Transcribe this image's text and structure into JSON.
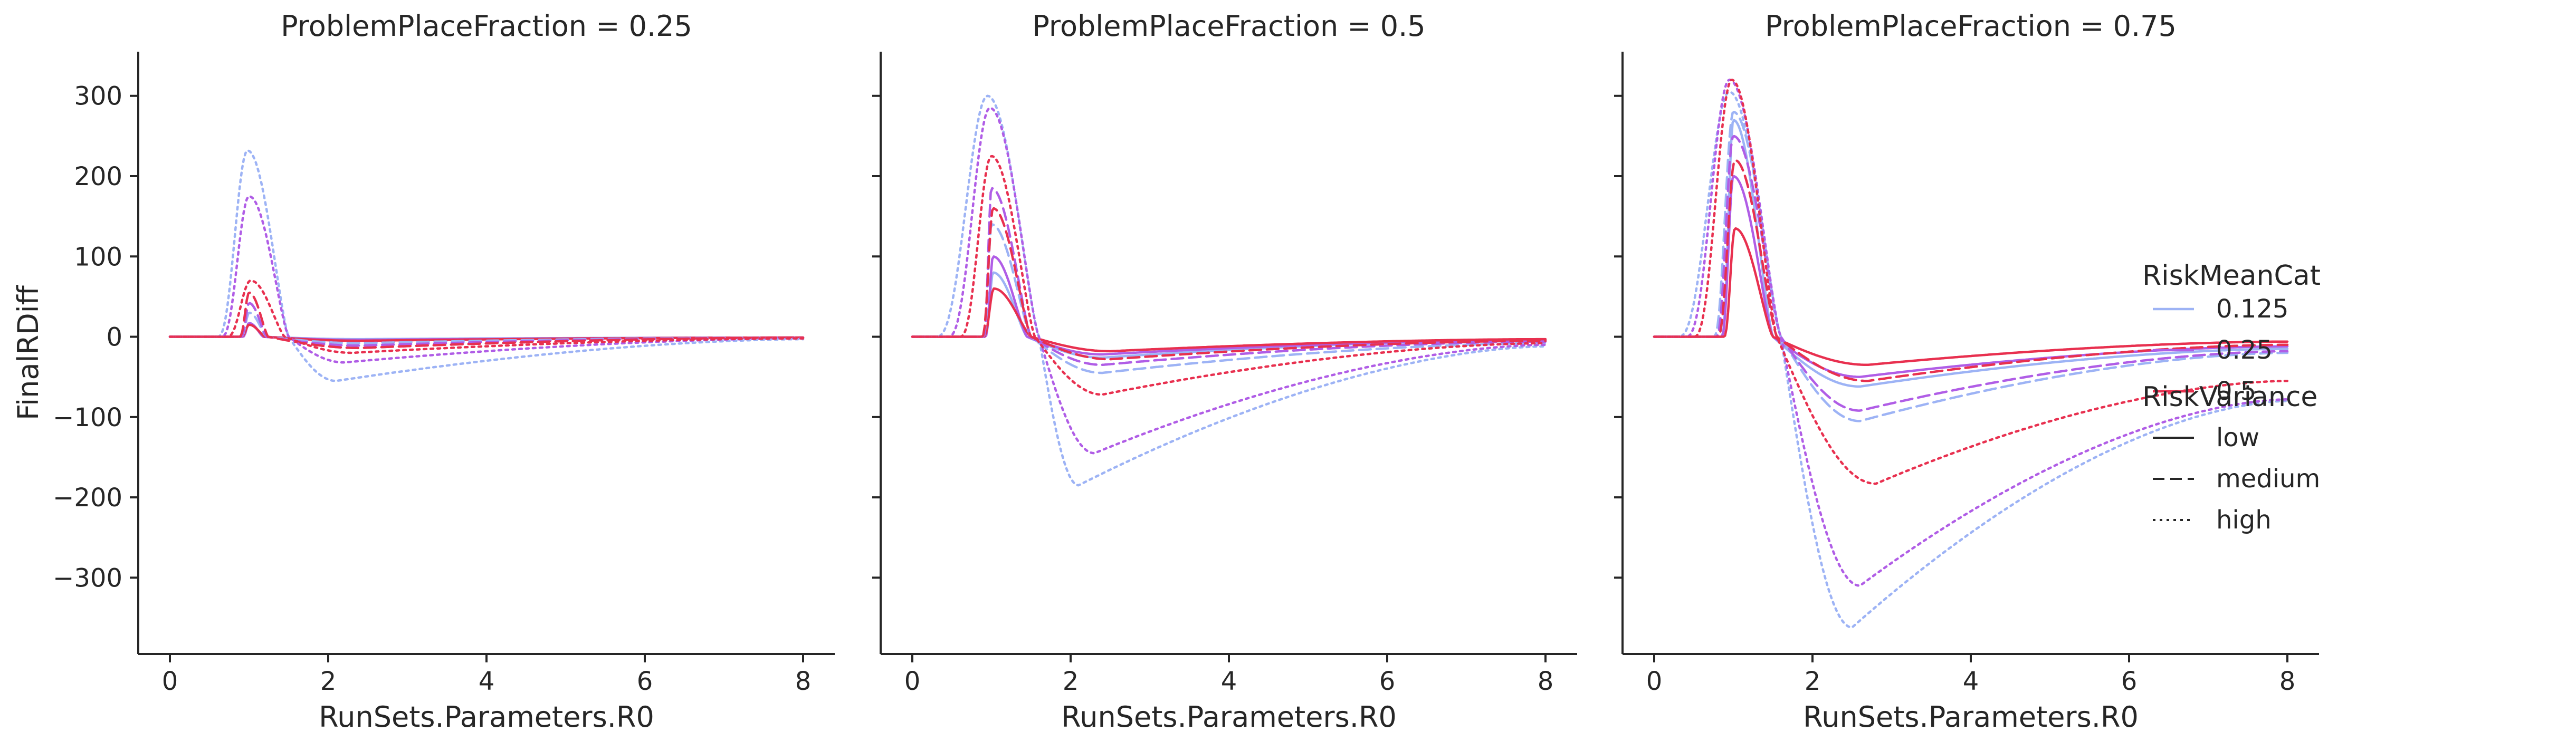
{
  "chart_data": {
    "type": "line",
    "facet_variable": "ProblemPlaceFraction",
    "xlabel": "RunSets.Parameters.R0",
    "ylabel": "FinalRDiff",
    "xlim": [
      -0.4,
      8.4
    ],
    "ylim": [
      -395,
      355
    ],
    "xticks": [
      0,
      2,
      4,
      6,
      8
    ],
    "yticks": [
      -300,
      -200,
      -100,
      0,
      100,
      200,
      300
    ],
    "x_tick_labels": [
      "0",
      "2",
      "4",
      "6",
      "8"
    ],
    "y_tick_labels": [
      "−300",
      "−200",
      "−100",
      "0",
      "100",
      "200",
      "300"
    ],
    "hue_title": "RiskMeanCat",
    "style_title": "RiskVariance",
    "hue_levels": [
      {
        "label": "0.125",
        "color": "#9db3f5"
      },
      {
        "label": "0.25",
        "color": "#b05de6"
      },
      {
        "label": "0.5",
        "color": "#e8304f"
      }
    ],
    "style_levels": [
      {
        "label": "low",
        "dash": "solid"
      },
      {
        "label": "medium",
        "dash": "dashed"
      },
      {
        "label": "high",
        "dash": "dotted"
      }
    ],
    "panels": [
      {
        "title": "ProblemPlaceFraction = 0.25",
        "series": [
          {
            "risk_mean": "0.125",
            "risk_variance": "low",
            "onset": 0.92,
            "peak_x": 1.0,
            "peak_y": 17,
            "tail_start": 1.18,
            "min_x": 2.4,
            "min_y": -3,
            "end_y": -1
          },
          {
            "risk_mean": "0.25",
            "risk_variance": "low",
            "onset": 0.92,
            "peak_x": 1.0,
            "peak_y": 17,
            "tail_start": 1.18,
            "min_x": 2.4,
            "min_y": -4,
            "end_y": -1
          },
          {
            "risk_mean": "0.5",
            "risk_variance": "low",
            "onset": 0.9,
            "peak_x": 1.0,
            "peak_y": 15,
            "tail_start": 1.2,
            "min_x": 2.4,
            "min_y": -5,
            "end_y": -1
          },
          {
            "risk_mean": "0.125",
            "risk_variance": "medium",
            "onset": 0.9,
            "peak_x": 1.0,
            "peak_y": 30,
            "tail_start": 1.22,
            "min_x": 2.4,
            "min_y": -8,
            "end_y": -1
          },
          {
            "risk_mean": "0.25",
            "risk_variance": "medium",
            "onset": 0.9,
            "peak_x": 1.0,
            "peak_y": 42,
            "tail_start": 1.22,
            "min_x": 2.4,
            "min_y": -11,
            "end_y": -1
          },
          {
            "risk_mean": "0.5",
            "risk_variance": "medium",
            "onset": 0.88,
            "peak_x": 1.0,
            "peak_y": 55,
            "tail_start": 1.24,
            "min_x": 2.4,
            "min_y": -14,
            "end_y": -1
          },
          {
            "risk_mean": "0.125",
            "risk_variance": "high",
            "onset": 0.6,
            "peak_x": 0.98,
            "peak_y": 232,
            "tail_start": 1.5,
            "min_x": 2.1,
            "min_y": -55,
            "end_y": -3
          },
          {
            "risk_mean": "0.25",
            "risk_variance": "high",
            "onset": 0.65,
            "peak_x": 1.0,
            "peak_y": 175,
            "tail_start": 1.5,
            "min_x": 2.2,
            "min_y": -32,
            "end_y": -2
          },
          {
            "risk_mean": "0.5",
            "risk_variance": "high",
            "onset": 0.72,
            "peak_x": 1.02,
            "peak_y": 70,
            "tail_start": 1.45,
            "min_x": 2.3,
            "min_y": -20,
            "end_y": -2
          }
        ]
      },
      {
        "title": "ProblemPlaceFraction = 0.5",
        "series": [
          {
            "risk_mean": "0.125",
            "risk_variance": "low",
            "onset": 0.92,
            "peak_x": 1.02,
            "peak_y": 80,
            "tail_start": 1.45,
            "min_x": 2.4,
            "min_y": -26,
            "end_y": -4
          },
          {
            "risk_mean": "0.25",
            "risk_variance": "low",
            "onset": 0.92,
            "peak_x": 1.02,
            "peak_y": 100,
            "tail_start": 1.45,
            "min_x": 2.4,
            "min_y": -22,
            "end_y": -4
          },
          {
            "risk_mean": "0.5",
            "risk_variance": "low",
            "onset": 0.9,
            "peak_x": 1.03,
            "peak_y": 60,
            "tail_start": 1.5,
            "min_x": 2.5,
            "min_y": -18,
            "end_y": -3
          },
          {
            "risk_mean": "0.125",
            "risk_variance": "medium",
            "onset": 0.9,
            "peak_x": 1.0,
            "peak_y": 140,
            "tail_start": 1.5,
            "min_x": 2.4,
            "min_y": -45,
            "end_y": -8
          },
          {
            "risk_mean": "0.25",
            "risk_variance": "medium",
            "onset": 0.9,
            "peak_x": 1.0,
            "peak_y": 185,
            "tail_start": 1.5,
            "min_x": 2.4,
            "min_y": -35,
            "end_y": -6
          },
          {
            "risk_mean": "0.5",
            "risk_variance": "medium",
            "onset": 0.88,
            "peak_x": 1.02,
            "peak_y": 160,
            "tail_start": 1.5,
            "min_x": 2.5,
            "min_y": -28,
            "end_y": -5
          },
          {
            "risk_mean": "0.125",
            "risk_variance": "high",
            "onset": 0.3,
            "peak_x": 0.95,
            "peak_y": 300,
            "tail_start": 1.6,
            "min_x": 2.1,
            "min_y": -185,
            "end_y": -12
          },
          {
            "risk_mean": "0.25",
            "risk_variance": "high",
            "onset": 0.45,
            "peak_x": 0.98,
            "peak_y": 285,
            "tail_start": 1.6,
            "min_x": 2.3,
            "min_y": -145,
            "end_y": -10
          },
          {
            "risk_mean": "0.5",
            "risk_variance": "high",
            "onset": 0.6,
            "peak_x": 1.0,
            "peak_y": 225,
            "tail_start": 1.55,
            "min_x": 2.4,
            "min_y": -72,
            "end_y": -8
          }
        ]
      },
      {
        "title": "ProblemPlaceFraction = 0.75",
        "series": [
          {
            "risk_mean": "0.125",
            "risk_variance": "low",
            "onset": 0.85,
            "peak_x": 1.0,
            "peak_y": 270,
            "tail_start": 1.5,
            "min_x": 2.6,
            "min_y": -62,
            "end_y": -15
          },
          {
            "risk_mean": "0.25",
            "risk_variance": "low",
            "onset": 0.85,
            "peak_x": 1.0,
            "peak_y": 200,
            "tail_start": 1.5,
            "min_x": 2.6,
            "min_y": -50,
            "end_y": -12
          },
          {
            "risk_mean": "0.5",
            "risk_variance": "low",
            "onset": 0.88,
            "peak_x": 1.02,
            "peak_y": 135,
            "tail_start": 1.5,
            "min_x": 2.7,
            "min_y": -35,
            "end_y": -6
          },
          {
            "risk_mean": "0.125",
            "risk_variance": "medium",
            "onset": 0.75,
            "peak_x": 1.0,
            "peak_y": 280,
            "tail_start": 1.6,
            "min_x": 2.6,
            "min_y": -105,
            "end_y": -20
          },
          {
            "risk_mean": "0.25",
            "risk_variance": "medium",
            "onset": 0.78,
            "peak_x": 1.0,
            "peak_y": 250,
            "tail_start": 1.6,
            "min_x": 2.6,
            "min_y": -92,
            "end_y": -18
          },
          {
            "risk_mean": "0.5",
            "risk_variance": "medium",
            "onset": 0.8,
            "peak_x": 1.02,
            "peak_y": 220,
            "tail_start": 1.55,
            "min_x": 2.7,
            "min_y": -55,
            "end_y": -10
          },
          {
            "risk_mean": "0.125",
            "risk_variance": "high",
            "onset": 0.3,
            "peak_x": 0.95,
            "peak_y": 305,
            "tail_start": 1.6,
            "min_x": 2.5,
            "min_y": -362,
            "end_y": -80
          },
          {
            "risk_mean": "0.25",
            "risk_variance": "high",
            "onset": 0.4,
            "peak_x": 0.95,
            "peak_y": 320,
            "tail_start": 1.6,
            "min_x": 2.6,
            "min_y": -310,
            "end_y": -78
          },
          {
            "risk_mean": "0.5",
            "risk_variance": "high",
            "onset": 0.5,
            "peak_x": 0.98,
            "peak_y": 320,
            "tail_start": 1.55,
            "min_x": 2.8,
            "min_y": -183,
            "end_y": -55
          }
        ]
      }
    ]
  }
}
